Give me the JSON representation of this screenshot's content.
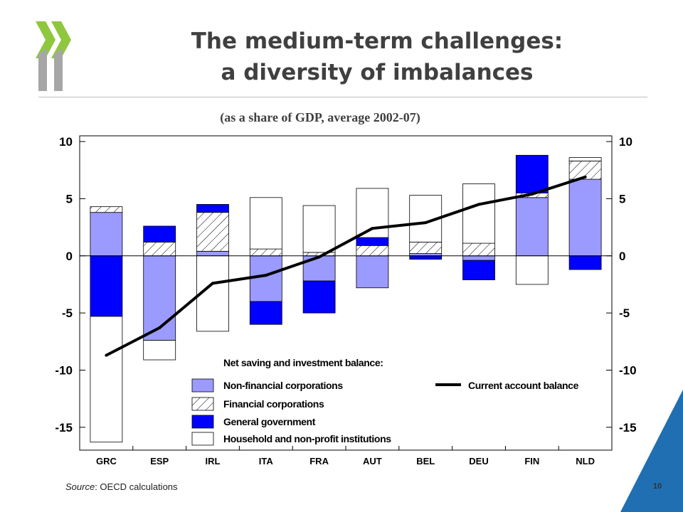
{
  "slide": {
    "title_line1": "The medium-term challenges:",
    "title_line2": "a diversity of imbalances",
    "subtitle": "(as a share of GDP, average 2002-07)",
    "source_label": "Source",
    "source_text": ": OECD calculations",
    "page_number": "10"
  },
  "colors": {
    "logo_green": "#8fc73e",
    "logo_gray": "#a6a6a6",
    "nonfinancial": "#9b9bff",
    "government": "#0000ff",
    "household": "#ffffff",
    "current_account_line": "#000000",
    "corner_blue": "#1f6fb2"
  },
  "chart_data": {
    "type": "bar",
    "stacked": true,
    "categories": [
      "GRC",
      "ESP",
      "IRL",
      "ITA",
      "FRA",
      "AUT",
      "BEL",
      "DEU",
      "FIN",
      "NLD"
    ],
    "ylim": [
      -17,
      10.5
    ],
    "yticks_left": [
      "10",
      "5",
      "0",
      "-5",
      "-10",
      "-15"
    ],
    "yticks_right": [
      "10",
      "5",
      "0",
      "-5",
      "-10",
      "-15"
    ],
    "ytick_values": [
      10,
      5,
      0,
      -5,
      -10,
      -15
    ],
    "legend_title": "Net saving and investment balance:",
    "series": [
      {
        "name": "Non-financial corporations",
        "pattern": "solid-lightblue",
        "values": [
          3.8,
          -7.4,
          0.4,
          -4.0,
          -2.2,
          -2.8,
          0.2,
          -0.4,
          5.1,
          6.7
        ]
      },
      {
        "name": "Financial corporations",
        "pattern": "hatched",
        "values": [
          0.5,
          1.2,
          3.4,
          0.6,
          0.3,
          0.9,
          1.0,
          1.1,
          0.4,
          1.6
        ]
      },
      {
        "name": "General government",
        "pattern": "solid-blue",
        "values": [
          -5.3,
          1.4,
          0.7,
          -2.0,
          -2.8,
          0.7,
          -0.3,
          -1.7,
          3.3,
          -1.2
        ]
      },
      {
        "name": "Household and non-profit institutions",
        "pattern": "white",
        "values": [
          -11.0,
          -1.7,
          -6.6,
          4.5,
          4.1,
          4.3,
          4.1,
          5.2,
          -2.5,
          0.3
        ]
      }
    ],
    "line": {
      "name": "Current account balance",
      "values": [
        -8.7,
        -6.3,
        -2.4,
        -1.7,
        -0.1,
        2.4,
        2.9,
        4.5,
        5.4,
        6.9
      ]
    },
    "legend_position": "bottom-center, inside plot"
  }
}
